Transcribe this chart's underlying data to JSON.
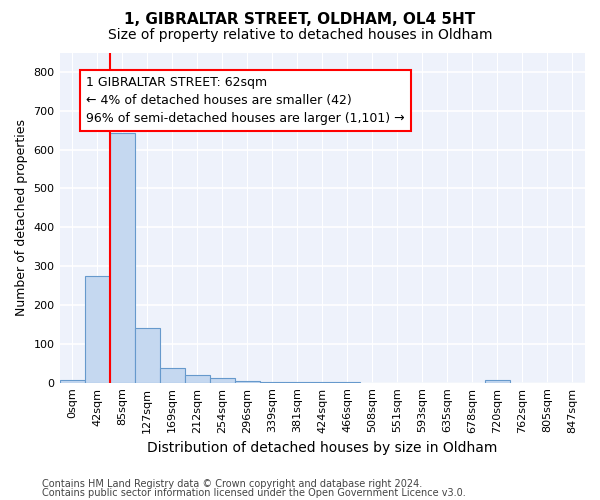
{
  "title_line1": "1, GIBRALTAR STREET, OLDHAM, OL4 5HT",
  "title_line2": "Size of property relative to detached houses in Oldham",
  "xlabel": "Distribution of detached houses by size in Oldham",
  "ylabel": "Number of detached properties",
  "bar_labels": [
    "0sqm",
    "42sqm",
    "85sqm",
    "127sqm",
    "169sqm",
    "212sqm",
    "254sqm",
    "296sqm",
    "339sqm",
    "381sqm",
    "424sqm",
    "466sqm",
    "508sqm",
    "551sqm",
    "593sqm",
    "635sqm",
    "678sqm",
    "720sqm",
    "762sqm",
    "805sqm",
    "847sqm"
  ],
  "bar_values": [
    8,
    275,
    643,
    140,
    37,
    20,
    12,
    5,
    3,
    3,
    3,
    3,
    0,
    0,
    0,
    0,
    0,
    6,
    0,
    0,
    0
  ],
  "bar_color": "#c5d8f0",
  "bar_edge_color": "#6699cc",
  "ylim": [
    0,
    850
  ],
  "yticks": [
    0,
    100,
    200,
    300,
    400,
    500,
    600,
    700,
    800
  ],
  "annotation_text": "1 GIBRALTAR STREET: 62sqm\n← 4% of detached houses are smaller (42)\n96% of semi-detached houses are larger (1,101) →",
  "annotation_box_color": "white",
  "annotation_box_edge_color": "red",
  "footer_line1": "Contains HM Land Registry data © Crown copyright and database right 2024.",
  "footer_line2": "Contains public sector information licensed under the Open Government Licence v3.0.",
  "background_color": "#eef2fb",
  "grid_color": "white",
  "title_fontsize": 11,
  "subtitle_fontsize": 10,
  "axis_label_fontsize": 9,
  "tick_fontsize": 8,
  "annotation_fontsize": 9,
  "footer_fontsize": 7
}
